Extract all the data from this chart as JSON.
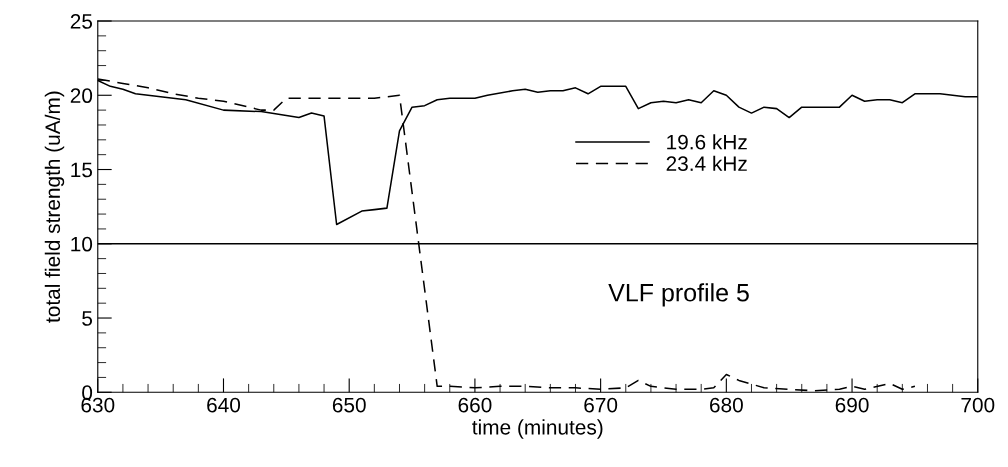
{
  "chart_data": {
    "type": "line",
    "xlabel": "time (minutes)",
    "ylabel": "total field strength (uA/m)",
    "xlim": [
      630,
      700
    ],
    "xticks": [
      630,
      640,
      650,
      660,
      670,
      680,
      690,
      700
    ],
    "ylim": [
      0,
      25
    ],
    "yticks": [
      0,
      5,
      10,
      15,
      20,
      25
    ],
    "grid": false,
    "legend": "right",
    "marker": "none",
    "ref_lines": [
      {
        "axis": "y",
        "value": 10,
        "color": "#000000"
      }
    ],
    "annotations": [
      "VLF profile 5"
    ],
    "series": [
      {
        "name": "19.6 kHz",
        "color": "#000000",
        "line_style": "solid",
        "x": [
          630,
          631,
          632,
          633,
          635,
          637,
          640,
          643,
          646,
          647,
          648,
          649,
          651,
          652,
          653,
          654,
          655,
          656,
          657,
          658,
          660,
          661,
          663,
          664,
          665,
          666,
          667,
          668,
          669,
          670,
          672,
          673,
          674,
          675,
          676,
          677,
          678,
          679,
          680,
          681,
          682,
          683,
          684,
          685,
          686,
          687,
          689,
          690,
          691,
          692,
          693,
          694,
          695,
          696,
          697,
          699,
          700
        ],
        "values": [
          21.0,
          20.6,
          20.4,
          20.1,
          19.9,
          19.7,
          19.0,
          18.9,
          18.5,
          18.8,
          18.6,
          11.3,
          12.2,
          12.3,
          12.4,
          17.6,
          19.2,
          19.3,
          19.7,
          19.8,
          19.8,
          20.0,
          20.3,
          20.4,
          20.2,
          20.3,
          20.3,
          20.5,
          20.1,
          20.6,
          20.6,
          19.1,
          19.5,
          19.6,
          19.5,
          19.7,
          19.5,
          20.3,
          20.0,
          19.2,
          18.8,
          19.2,
          19.1,
          18.5,
          19.2,
          19.2,
          19.2,
          20.0,
          19.6,
          19.7,
          19.7,
          19.5,
          20.1,
          20.1,
          20.1,
          19.9,
          19.9
        ]
      },
      {
        "name": "23.4 kHz",
        "color": "#000000",
        "line_style": "dashed",
        "x": [
          630,
          632,
          634,
          636,
          638,
          640,
          642,
          643,
          644,
          645,
          646,
          648,
          650,
          652,
          654,
          657,
          658,
          660,
          662,
          664,
          666,
          668,
          670,
          672,
          673,
          674,
          676,
          678,
          679,
          680,
          681,
          683,
          685,
          687,
          689,
          690,
          691,
          693,
          694,
          695
        ],
        "values": [
          21.1,
          20.8,
          20.5,
          20.1,
          19.8,
          19.6,
          19.2,
          19.0,
          19.0,
          19.8,
          19.8,
          19.8,
          19.8,
          19.8,
          20.0,
          0.4,
          0.4,
          0.3,
          0.4,
          0.4,
          0.3,
          0.3,
          0.2,
          0.3,
          0.8,
          0.4,
          0.2,
          0.2,
          0.3,
          1.2,
          0.8,
          0.3,
          0.2,
          0.1,
          0.2,
          0.4,
          0.2,
          0.6,
          0.2,
          0.4
        ]
      }
    ]
  }
}
